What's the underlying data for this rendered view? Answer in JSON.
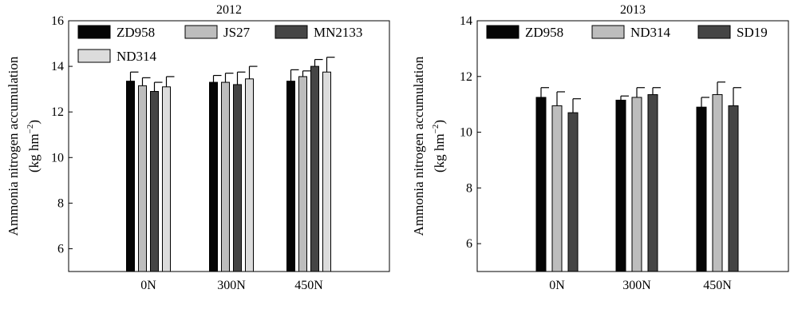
{
  "figure": {
    "colors": {
      "ZD958": "#050505",
      "JS27": "#bdbdbd",
      "MN2133": "#454545",
      "ND314": "#dcdcdc",
      "SD19": "#454545"
    }
  },
  "chart_data": [
    {
      "type": "bar",
      "title": "2012",
      "ylabel": "Ammonia nitrogen accumulation",
      "yunit_base": "(kg hm",
      "yunit_exp": "−2",
      "yunit_close": ")",
      "ylim": [
        5,
        16
      ],
      "yticks": [
        "6",
        "8",
        "10",
        "12",
        "14",
        "16"
      ],
      "categories": [
        "0N",
        "300N",
        "450N"
      ],
      "grid": false,
      "legend_placement": "top",
      "series": [
        {
          "name": "ZD958",
          "values": [
            13.35,
            13.3,
            13.35
          ],
          "errors": [
            0.4,
            0.3,
            0.5
          ],
          "color": "#050505",
          "legend_row": 0
        },
        {
          "name": "JS27",
          "values": [
            13.15,
            13.3,
            13.55
          ],
          "errors": [
            0.35,
            0.4,
            0.25
          ],
          "color": "#bdbdbd",
          "legend_row": 0
        },
        {
          "name": "MN2133",
          "values": [
            12.9,
            13.2,
            14.0
          ],
          "errors": [
            0.4,
            0.55,
            0.3
          ],
          "color": "#454545",
          "legend_row": 0
        },
        {
          "name": "ND314",
          "values": [
            13.1,
            13.45,
            13.75
          ],
          "errors": [
            0.45,
            0.55,
            0.65
          ],
          "color": "#dcdcdc",
          "legend_row": 1
        }
      ]
    },
    {
      "type": "bar",
      "title": "2013",
      "ylabel": "Ammonia nitrogen accumulation",
      "yunit_base": "(kg hm",
      "yunit_exp": "−2",
      "yunit_close": ")",
      "ylim": [
        5,
        14
      ],
      "yticks": [
        "6",
        "8",
        "10",
        "12",
        "14"
      ],
      "categories": [
        "0N",
        "300N",
        "450N"
      ],
      "grid": false,
      "legend_placement": "top",
      "series": [
        {
          "name": "ZD958",
          "values": [
            11.25,
            11.15,
            10.9
          ],
          "errors": [
            0.35,
            0.15,
            0.35
          ],
          "color": "#050505",
          "legend_row": 0
        },
        {
          "name": "ND314",
          "values": [
            10.95,
            11.25,
            11.35
          ],
          "errors": [
            0.5,
            0.35,
            0.45
          ],
          "color": "#bdbdbd",
          "legend_row": 0
        },
        {
          "name": "SD19",
          "values": [
            10.7,
            11.35,
            10.95
          ],
          "errors": [
            0.5,
            0.25,
            0.65
          ],
          "color": "#454545",
          "legend_row": 0
        }
      ]
    }
  ]
}
